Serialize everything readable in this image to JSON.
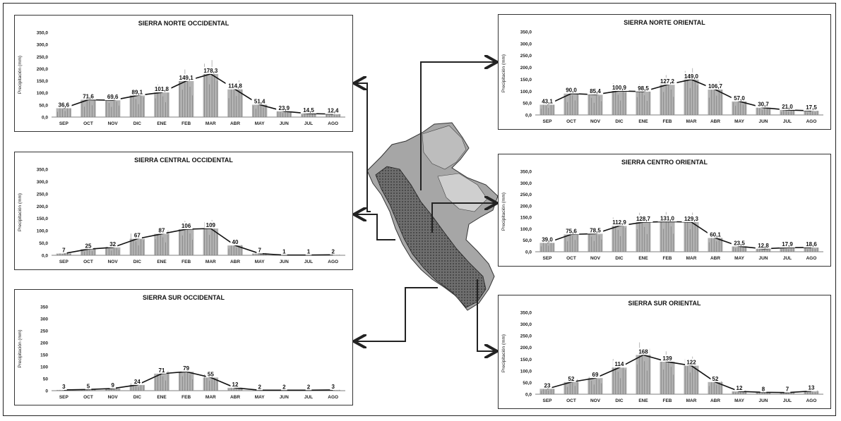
{
  "months": [
    "SEP",
    "OCT",
    "NOV",
    "DIC",
    "ENE",
    "FEB",
    "MAR",
    "ABR",
    "MAY",
    "JUN",
    "JUL",
    "AGO"
  ],
  "ylabel": "Precipitación (mm)",
  "colors": {
    "bar": "#9a9a9a",
    "line": "#111111",
    "frame": "#222222",
    "map_land": "#8f8f8f",
    "map_dark": "#4a4a4a"
  },
  "chart_data": [
    {
      "type": "bar",
      "title": "SIERRA NORTE OCCIDENTAL",
      "ylabel": "Precipitación (mm)",
      "categories": [
        "SEP",
        "OCT",
        "NOV",
        "DIC",
        "ENE",
        "FEB",
        "MAR",
        "ABR",
        "MAY",
        "JUN",
        "JUL",
        "AGO"
      ],
      "values": [
        36.6,
        71.6,
        69.6,
        89.1,
        101.8,
        149.1,
        178.3,
        114.8,
        51.4,
        23.9,
        14.5,
        12.4
      ],
      "value_labels": [
        "36,6",
        "71,6",
        "69,6",
        "89,1",
        "101,8",
        "149,1",
        "178,3",
        "114,8",
        "51,4",
        "23,9",
        "14,5",
        "12,4"
      ],
      "yticks": [
        "0,0",
        "50,0",
        "100,0",
        "150,0",
        "200,0",
        "250,0",
        "300,0",
        "350,0"
      ],
      "ylim": [
        0,
        350
      ]
    },
    {
      "type": "bar",
      "title": "SIERRA CENTRAL OCCIDENTAL",
      "ylabel": "Precipitación (mm)",
      "categories": [
        "SEP",
        "OCT",
        "NOV",
        "DIC",
        "ENE",
        "FEB",
        "MAR",
        "ABR",
        "MAY",
        "JUN",
        "JUL",
        "AGO"
      ],
      "values": [
        7,
        25,
        32,
        67,
        87,
        106,
        109,
        40,
        7,
        1,
        1,
        2
      ],
      "value_labels": [
        "7",
        "25",
        "32",
        "67",
        "87",
        "106",
        "109",
        "40",
        "7",
        "1",
        "1",
        "2"
      ],
      "yticks": [
        "0,0",
        "50,0",
        "100,0",
        "150,0",
        "200,0",
        "250,0",
        "300,0",
        "350,0"
      ],
      "ylim": [
        0,
        350
      ]
    },
    {
      "type": "bar",
      "title": "SIERRA SUR OCCIDENTAL",
      "ylabel": "Precipitación (mm)",
      "categories": [
        "SEP",
        "OCT",
        "NOV",
        "DIC",
        "ENE",
        "FEB",
        "MAR",
        "ABR",
        "MAY",
        "JUN",
        "JUL",
        "AGO"
      ],
      "values": [
        3,
        5,
        9,
        24,
        71,
        79,
        55,
        12,
        2,
        2,
        2,
        3
      ],
      "value_labels": [
        "3",
        "5",
        "9",
        "24",
        "71",
        "79",
        "55",
        "12",
        "2",
        "2",
        "2",
        "3"
      ],
      "yticks": [
        "0",
        "50",
        "100",
        "150",
        "200",
        "250",
        "300",
        "350"
      ],
      "ylim": [
        0,
        350
      ]
    },
    {
      "type": "bar",
      "title": "SIERRA NORTE ORIENTAL",
      "ylabel": "Precipitación (mm)",
      "categories": [
        "SEP",
        "OCT",
        "NOV",
        "DIC",
        "ENE",
        "FEB",
        "MAR",
        "ABR",
        "MAY",
        "JUN",
        "JUL",
        "AGO"
      ],
      "values": [
        43.1,
        90.0,
        85.4,
        100.9,
        98.5,
        127.2,
        149.0,
        106.7,
        57.0,
        30.7,
        21.0,
        17.5
      ],
      "value_labels": [
        "43,1",
        "90,0",
        "85,4",
        "100,9",
        "98,5",
        "127,2",
        "149,0",
        "106,7",
        "57,0",
        "30,7",
        "21,0",
        "17,5"
      ],
      "yticks": [
        "0,0",
        "50,0",
        "100,0",
        "150,0",
        "200,0",
        "250,0",
        "300,0",
        "350,0"
      ],
      "ylim": [
        0,
        350
      ]
    },
    {
      "type": "bar",
      "title": "SIERRA CENTRO ORIENTAL",
      "ylabel": "Precipitación (mm)",
      "categories": [
        "SEP",
        "OCT",
        "NOV",
        "DIC",
        "ENE",
        "FEB",
        "MAR",
        "ABR",
        "MAY",
        "JUN",
        "JUL",
        "AGO"
      ],
      "values": [
        39.0,
        75.6,
        78.5,
        112.9,
        128.7,
        131.0,
        129.3,
        60.1,
        23.5,
        12.8,
        17.9,
        18.6
      ],
      "value_labels": [
        "39,0",
        "75,6",
        "78,5",
        "112,9",
        "128,7",
        "131,0",
        "129,3",
        "60,1",
        "23,5",
        "12,8",
        "17,9",
        "18,6"
      ],
      "yticks": [
        "0,0",
        "50,0",
        "100,0",
        "150,0",
        "200,0",
        "250,0",
        "300,0",
        "350,0"
      ],
      "ylim": [
        0,
        350
      ]
    },
    {
      "type": "bar",
      "title": "SIERRA SUR ORIENTAL",
      "ylabel": "Precipitación (mm)",
      "categories": [
        "SEP",
        "OCT",
        "NOV",
        "DIC",
        "ENE",
        "FEB",
        "MAR",
        "ABR",
        "MAY",
        "JUN",
        "JUL",
        "AGO"
      ],
      "values": [
        23,
        52,
        69,
        114,
        168,
        139,
        122,
        52,
        12,
        8,
        7,
        13
      ],
      "value_labels": [
        "23",
        "52",
        "69",
        "114",
        "168",
        "139",
        "122",
        "52",
        "12",
        "8",
        "7",
        "13"
      ],
      "yticks": [
        "0,0",
        "50,0",
        "100,0",
        "150,0",
        "200,0",
        "250,0",
        "300,0",
        "350,0"
      ],
      "ylim": [
        0,
        350
      ]
    }
  ]
}
